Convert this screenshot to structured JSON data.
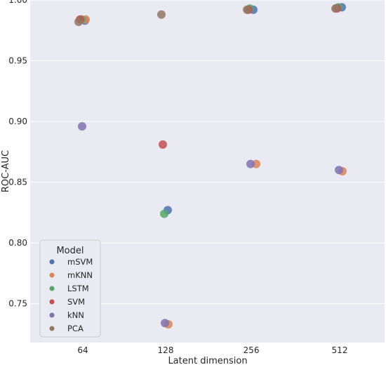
{
  "chart_data": {
    "type": "scatter",
    "title": "",
    "xlabel": "Latent dimension",
    "ylabel": "ROC-AUC",
    "categories": [
      "64",
      "128",
      "256",
      "512"
    ],
    "ylim": [
      0.718,
      1.0
    ],
    "yticks": [
      "0.75",
      "0.80",
      "0.85",
      "0.90",
      "0.95",
      "1.00"
    ],
    "grid": true,
    "legend": {
      "title": "Model",
      "placement": "lower-left"
    },
    "series": [
      {
        "name": "mSVM",
        "color": "#4c72b0",
        "values": [
          0.983,
          0.827,
          0.992,
          0.994
        ]
      },
      {
        "name": "mKNN",
        "color": "#dd8452",
        "values": [
          0.984,
          0.733,
          0.865,
          0.859
        ]
      },
      {
        "name": "LSTM",
        "color": "#55a868",
        "values": [
          0.984,
          0.824,
          0.993,
          0.994
        ]
      },
      {
        "name": "SVM",
        "color": "#c44e52",
        "values": [
          0.984,
          0.881,
          0.992,
          0.993
        ]
      },
      {
        "name": "kNN",
        "color": "#8172b3",
        "values": [
          0.896,
          0.734,
          0.865,
          0.86
        ]
      },
      {
        "name": "PCA",
        "color": "#937860",
        "values": [
          0.982,
          0.988,
          0.992,
          0.993
        ]
      }
    ]
  }
}
